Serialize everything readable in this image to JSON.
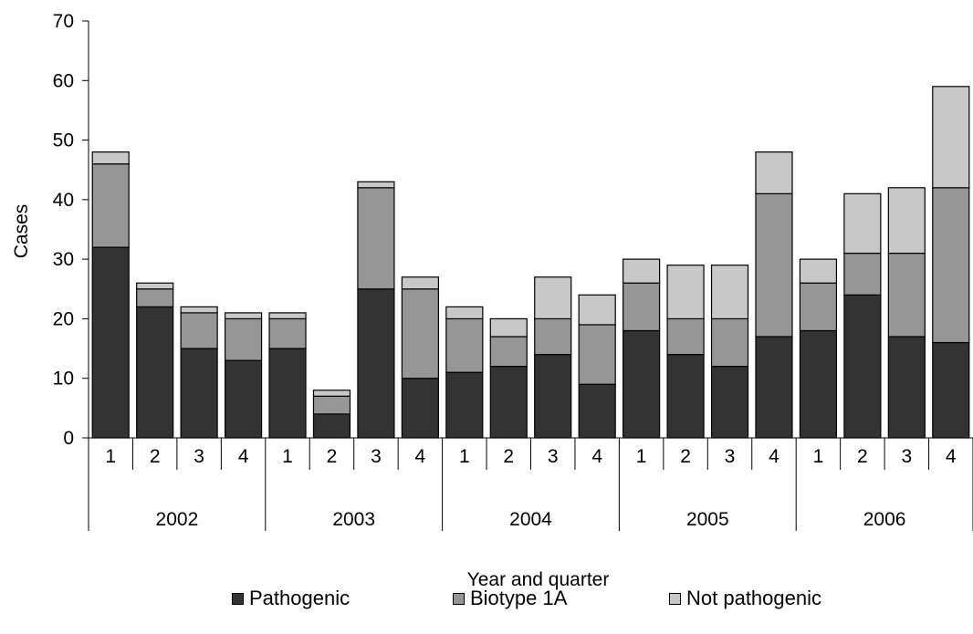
{
  "chart_data": {
    "type": "bar",
    "stacked": true,
    "xlabel": "Year and quarter",
    "ylabel": "Cases",
    "ylim": [
      0,
      70
    ],
    "yticks": [
      0,
      10,
      20,
      30,
      40,
      50,
      60,
      70
    ],
    "grid": false,
    "legend_position": "bottom",
    "groups": [
      "2002",
      "2003",
      "2004",
      "2005",
      "2006"
    ],
    "categories": [
      "1",
      "2",
      "3",
      "4",
      "1",
      "2",
      "3",
      "4",
      "1",
      "2",
      "3",
      "4",
      "1",
      "2",
      "3",
      "4",
      "1",
      "2",
      "3",
      "4"
    ],
    "series": [
      {
        "name": "Pathogenic",
        "color": "#333333",
        "values": [
          32,
          22,
          15,
          13,
          15,
          4,
          25,
          10,
          11,
          12,
          14,
          9,
          18,
          14,
          12,
          17,
          18,
          24,
          17,
          16
        ]
      },
      {
        "name": "Biotype 1A",
        "color": "#969696",
        "values": [
          14,
          3,
          6,
          7,
          5,
          3,
          17,
          15,
          9,
          5,
          6,
          10,
          8,
          6,
          8,
          24,
          8,
          7,
          14,
          26
        ]
      },
      {
        "name": "Not pathogenic",
        "color": "#c8c8c8",
        "values": [
          2,
          1,
          1,
          1,
          1,
          1,
          1,
          2,
          2,
          3,
          7,
          5,
          4,
          9,
          9,
          7,
          4,
          10,
          11,
          17
        ]
      }
    ]
  }
}
